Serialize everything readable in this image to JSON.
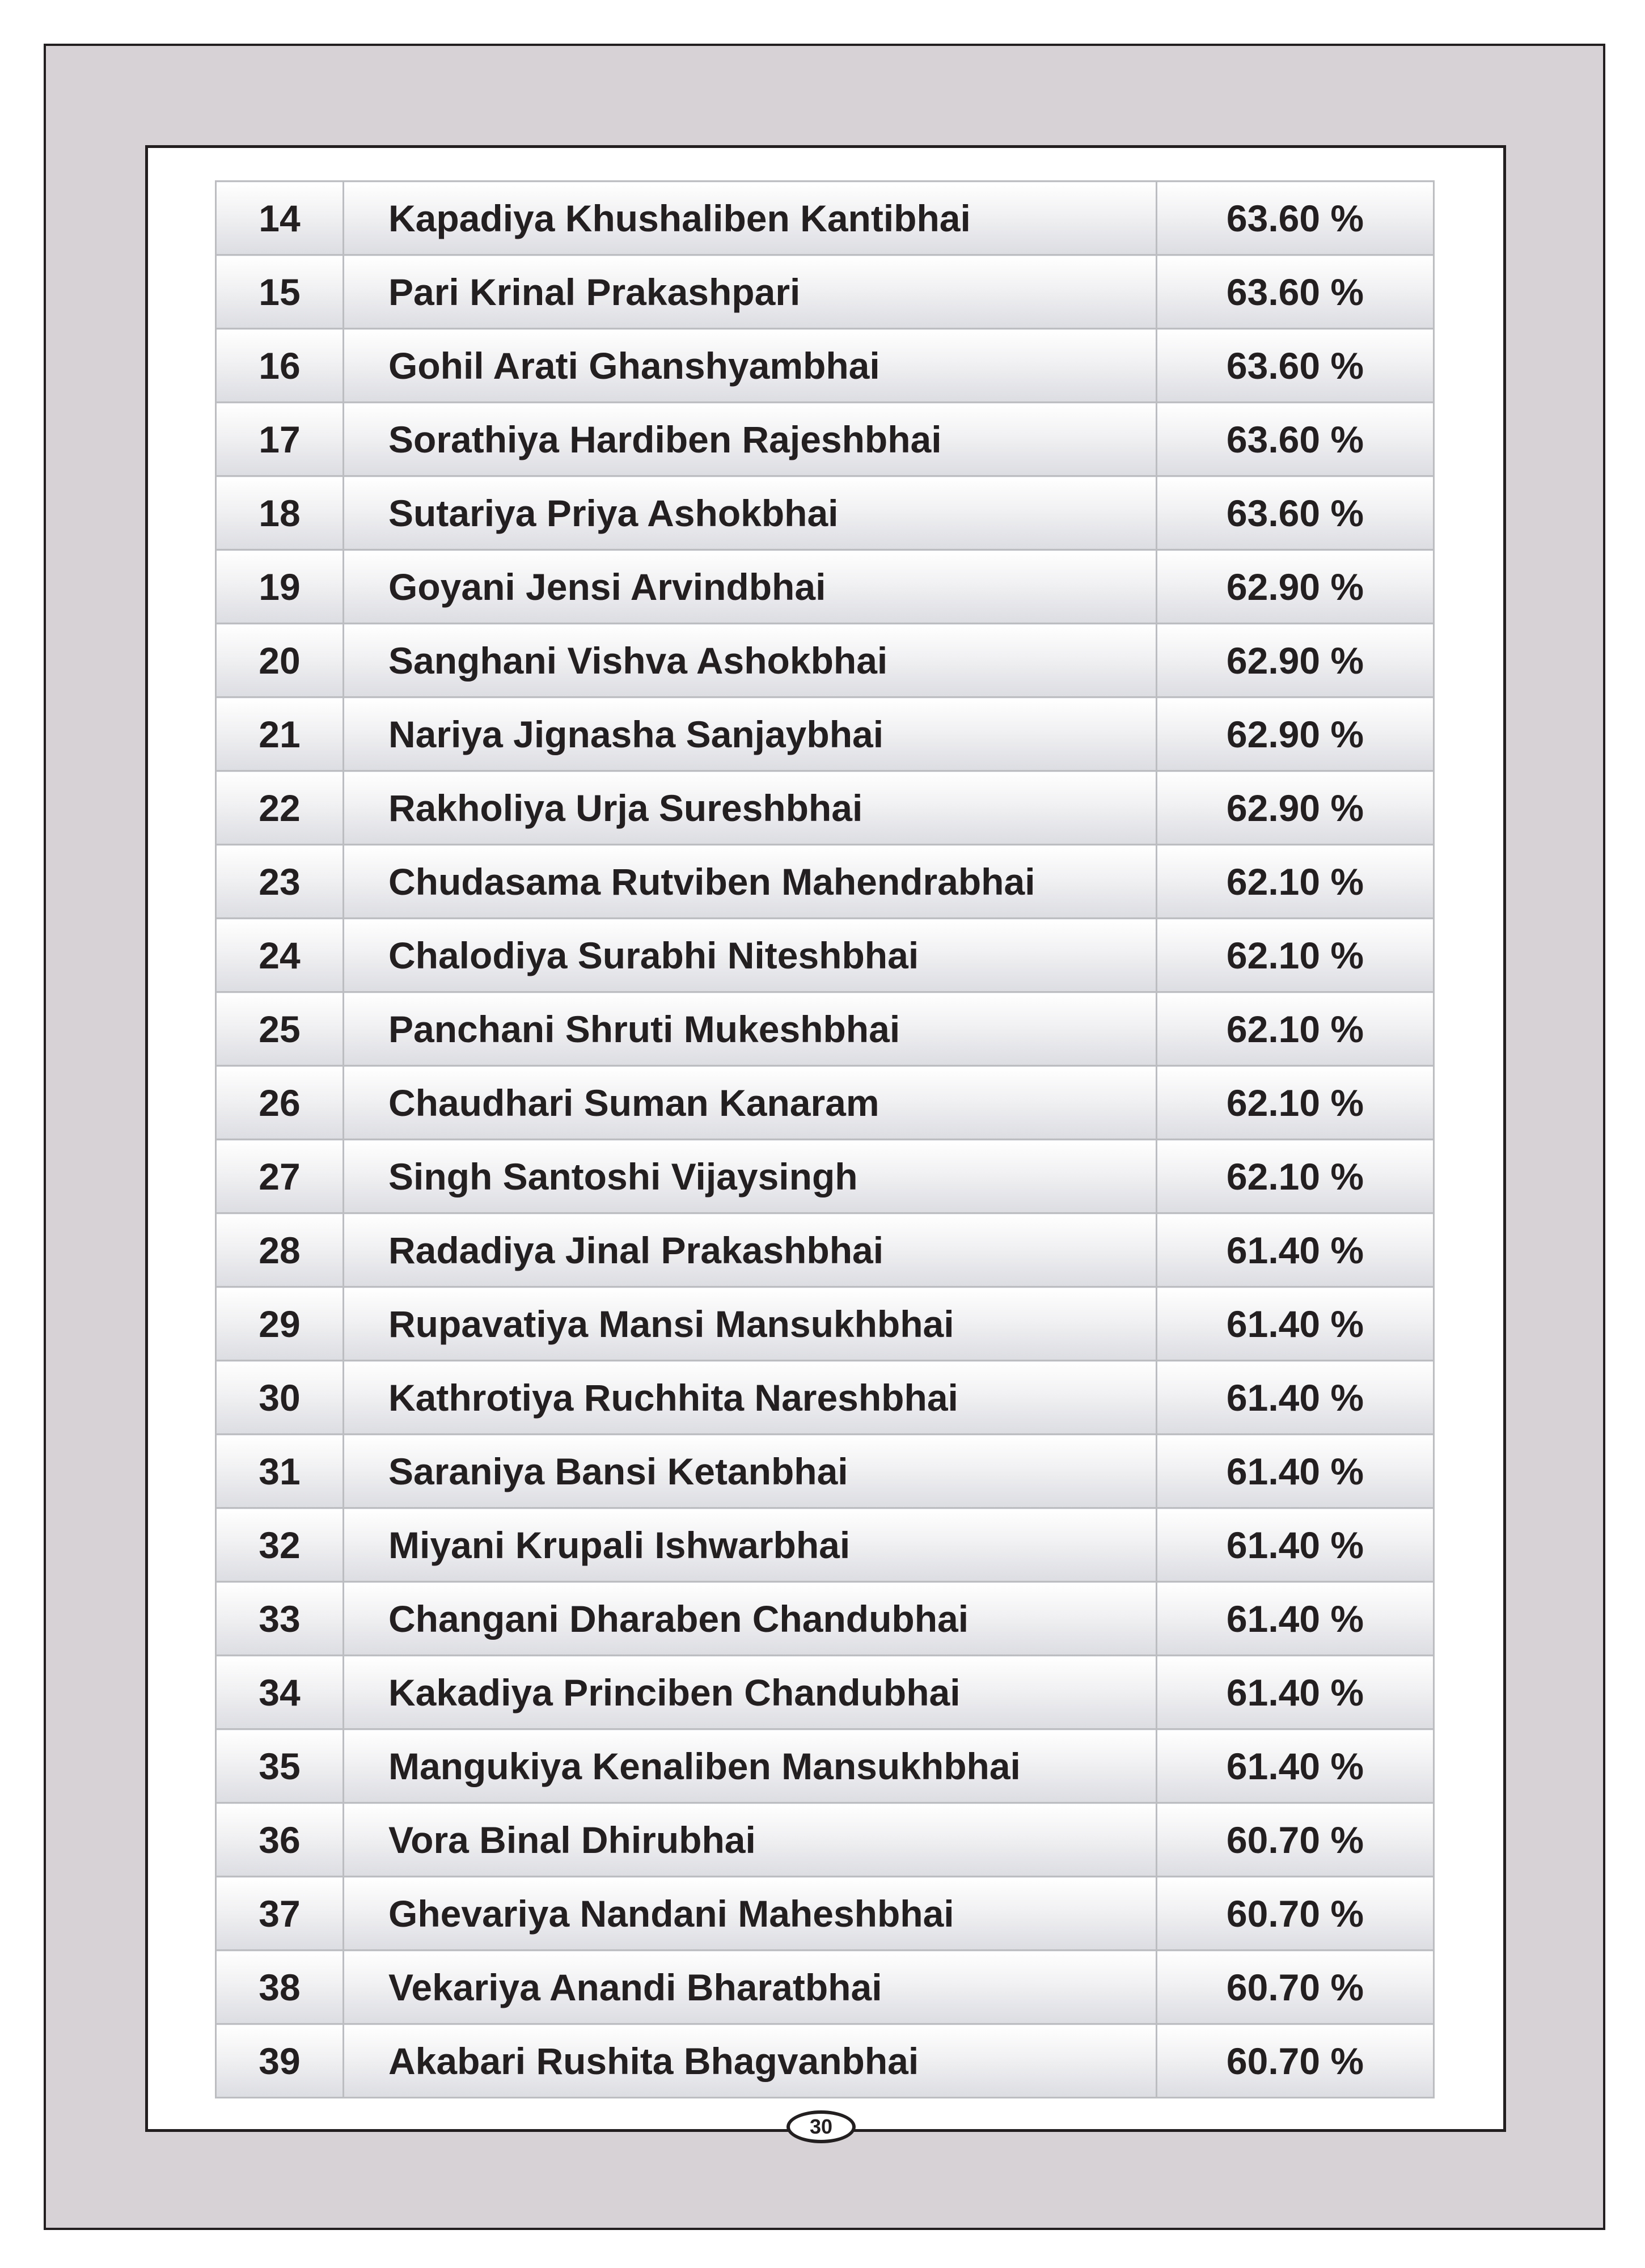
{
  "rows": [
    {
      "no": "14",
      "name": "Kapadiya Khushaliben Kantibhai",
      "percent": "63.60 %"
    },
    {
      "no": "15",
      "name": "Pari Krinal Prakashpari",
      "percent": "63.60 %"
    },
    {
      "no": "16",
      "name": "Gohil Arati Ghanshyambhai",
      "percent": "63.60 %"
    },
    {
      "no": "17",
      "name": "Sorathiya Hardiben Rajeshbhai",
      "percent": "63.60 %"
    },
    {
      "no": "18",
      "name": "Sutariya Priya Ashokbhai",
      "percent": "63.60 %"
    },
    {
      "no": "19",
      "name": "Goyani Jensi Arvindbhai",
      "percent": "62.90 %"
    },
    {
      "no": "20",
      "name": "Sanghani Vishva Ashokbhai",
      "percent": "62.90 %"
    },
    {
      "no": "21",
      "name": "Nariya Jignasha Sanjaybhai",
      "percent": "62.90 %"
    },
    {
      "no": "22",
      "name": "Rakholiya Urja Sureshbhai",
      "percent": "62.90 %"
    },
    {
      "no": "23",
      "name": "Chudasama Rutviben Mahendrabhai",
      "percent": "62.10 %"
    },
    {
      "no": "24",
      "name": "Chalodiya Surabhi Niteshbhai",
      "percent": "62.10 %"
    },
    {
      "no": "25",
      "name": "Panchani Shruti Mukeshbhai",
      "percent": "62.10 %"
    },
    {
      "no": "26",
      "name": "Chaudhari Suman Kanaram",
      "percent": "62.10 %"
    },
    {
      "no": "27",
      "name": "Singh Santoshi Vijaysingh",
      "percent": "62.10 %"
    },
    {
      "no": "28",
      "name": "Radadiya Jinal Prakashbhai",
      "percent": "61.40 %"
    },
    {
      "no": "29",
      "name": "Rupavatiya Mansi Mansukhbhai",
      "percent": "61.40 %"
    },
    {
      "no": "30",
      "name": "Kathrotiya Ruchhita Nareshbhai",
      "percent": "61.40 %"
    },
    {
      "no": "31",
      "name": "Saraniya Bansi Ketanbhai",
      "percent": "61.40 %"
    },
    {
      "no": "32",
      "name": "Miyani Krupali Ishwarbhai",
      "percent": "61.40 %"
    },
    {
      "no": "33",
      "name": "Changani Dharaben Chandubhai",
      "percent": "61.40 %"
    },
    {
      "no": "34",
      "name": "Kakadiya Princiben Chandubhai",
      "percent": "61.40 %"
    },
    {
      "no": "35",
      "name": "Mangukiya Kenaliben Mansukhbhai",
      "percent": "61.40 %"
    },
    {
      "no": "36",
      "name": "Vora Binal Dhirubhai",
      "percent": "60.70 %"
    },
    {
      "no": "37",
      "name": "Ghevariya Nandani Maheshbhai",
      "percent": "60.70 %"
    },
    {
      "no": "38",
      "name": "Vekariya Anandi Bharatbhai",
      "percent": "60.70 %"
    },
    {
      "no": "39",
      "name": "Akabari Rushita Bhagvanbhai",
      "percent": "60.70 %"
    }
  ],
  "page_number": "30",
  "colors": {
    "frame": "#d6d2d6",
    "border": "#231f20",
    "cell_border": "#bcbdc1"
  }
}
